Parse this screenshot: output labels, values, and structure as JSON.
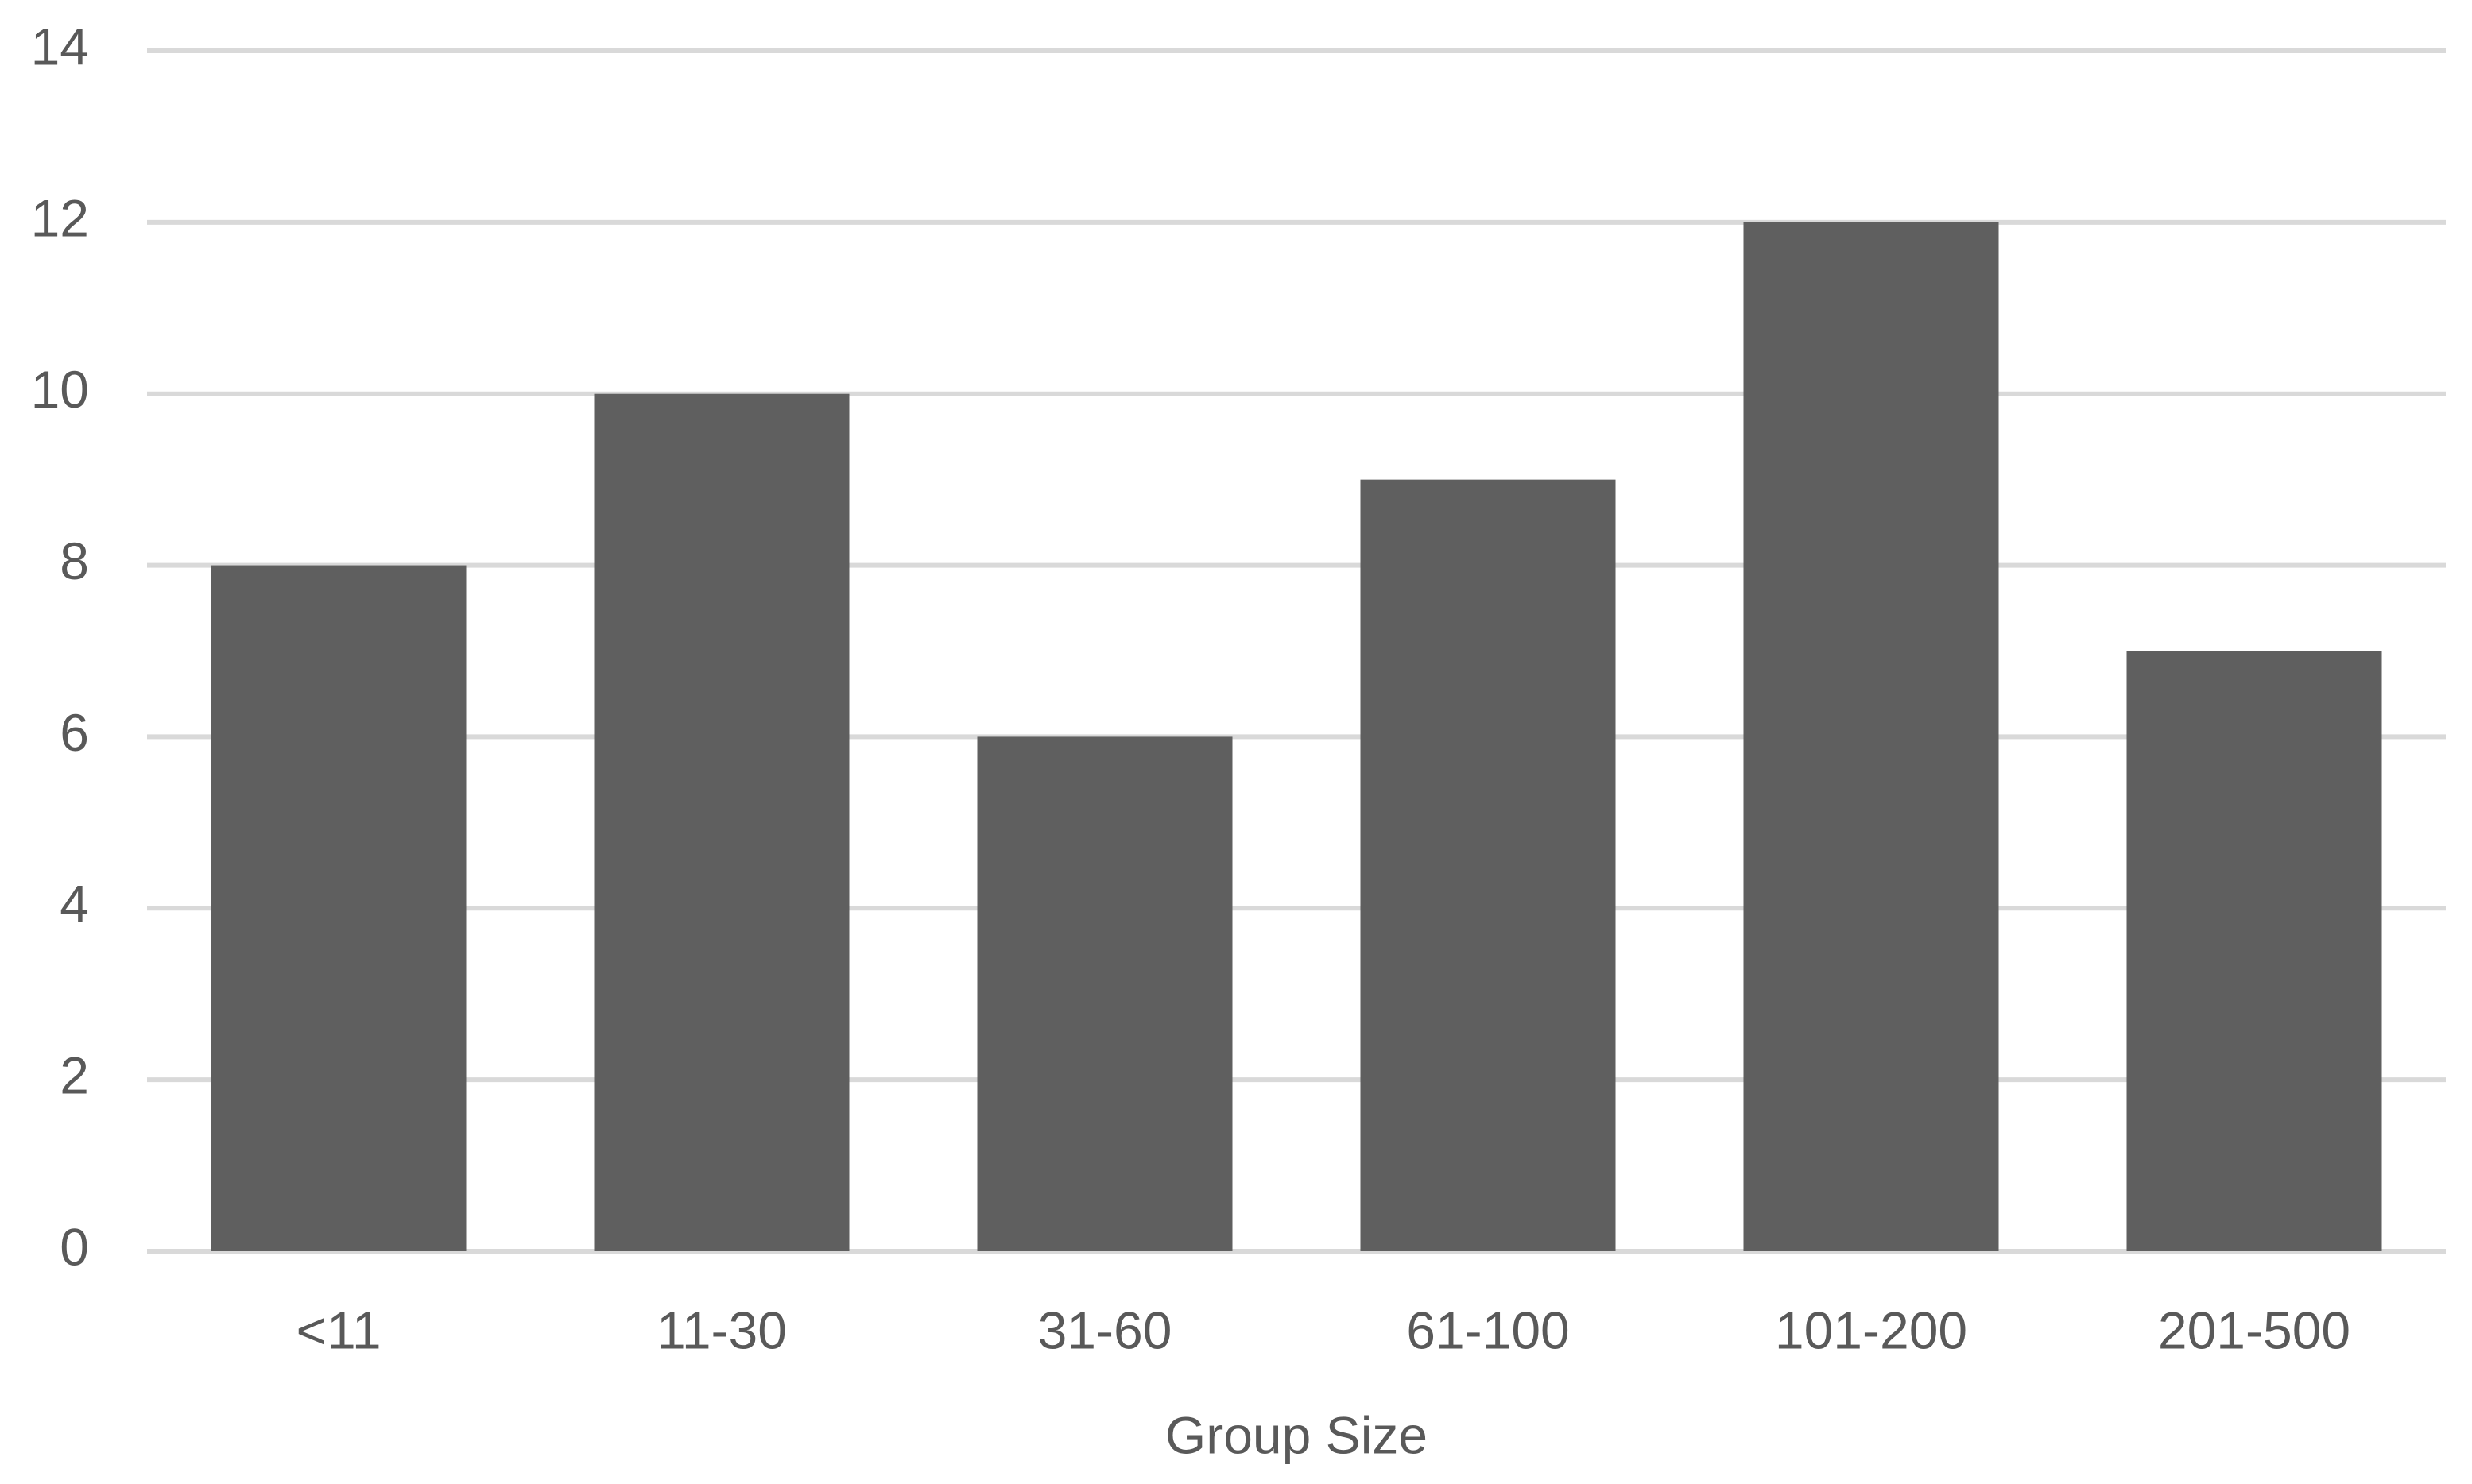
{
  "chart_data": {
    "type": "bar",
    "x_label": "Group Size",
    "categories": [
      "<11",
      "11-30",
      "31-60",
      "61-100",
      "101-200",
      "201-500"
    ],
    "values": [
      8,
      10,
      6,
      9,
      12,
      7
    ],
    "color": "#5f5f5f",
    "ylim": [
      0,
      14
    ],
    "yticks": [
      0,
      2,
      4,
      6,
      8,
      10,
      12,
      14
    ],
    "grid": true
  }
}
